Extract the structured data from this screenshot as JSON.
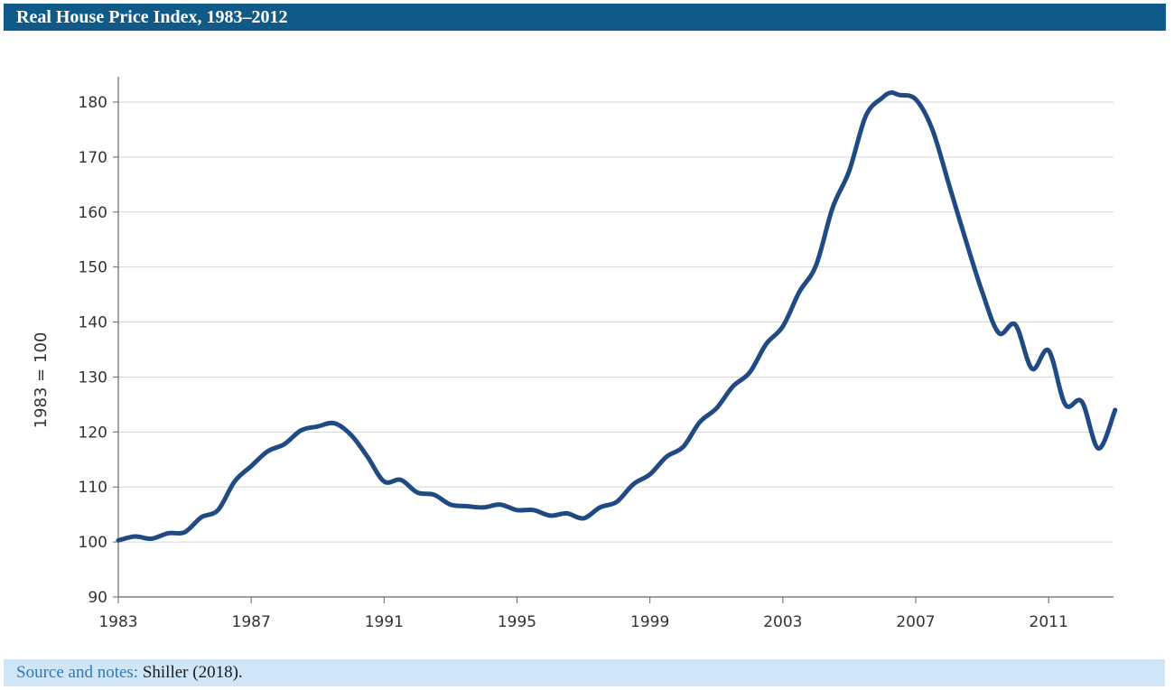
{
  "header": {
    "title": "Real House Price Index, 1983–2012"
  },
  "footer": {
    "label": "Source and notes:",
    "text": "Shiller (2018)."
  },
  "colors": {
    "title_bg": "#0f5a88",
    "line": "#1f4a82",
    "footer_bg": "#cfe6f8"
  },
  "chart_data": {
    "type": "line",
    "title": "Real House Price Index, 1983–2012",
    "ylabel": "1983 = 100",
    "xlabel": "",
    "xlim": [
      1983,
      2013.5
    ],
    "ylim": [
      90,
      185
    ],
    "xticks": [
      1983,
      1987,
      1991,
      1995,
      1999,
      2003,
      2007,
      2011
    ],
    "yticks": [
      90,
      100,
      110,
      120,
      130,
      140,
      150,
      160,
      170,
      180
    ],
    "grid": "horizontal",
    "series": [
      {
        "x": [
          1983.0,
          1983.5,
          1984.0,
          1984.5,
          1985.0,
          1985.5,
          1986.0,
          1986.5,
          1987.0,
          1987.5,
          1988.0,
          1988.5,
          1989.0,
          1989.5,
          1990.0,
          1990.5,
          1991.0,
          1991.5,
          1992.0,
          1992.5,
          1993.0,
          1993.5,
          1994.0,
          1994.5,
          1995.0,
          1995.5,
          1996.0,
          1996.5,
          1997.0,
          1997.5,
          1998.0,
          1998.5,
          1999.0,
          1999.5,
          2000.0,
          2000.5,
          2001.0,
          2001.5,
          2002.0,
          2002.5,
          2003.0,
          2003.5,
          2004.0,
          2004.5,
          2005.0,
          2005.5,
          2006.0,
          2006.25,
          2006.5,
          2007.0,
          2007.5,
          2008.0,
          2008.5,
          2009.0,
          2009.5,
          2010.0,
          2010.5,
          2011.0,
          2011.5,
          2012.0,
          2012.5,
          2013.0
        ],
        "y": [
          100.3,
          101.0,
          100.6,
          101.6,
          101.8,
          104.5,
          105.8,
          111.0,
          113.8,
          116.5,
          117.8,
          120.3,
          121.0,
          121.6,
          119.5,
          115.5,
          111.0,
          111.3,
          109.0,
          108.6,
          106.8,
          106.5,
          106.3,
          106.8,
          105.8,
          105.8,
          104.8,
          105.2,
          104.3,
          106.3,
          107.3,
          110.5,
          112.3,
          115.5,
          117.3,
          121.8,
          124.3,
          128.3,
          130.8,
          136.0,
          139.2,
          145.5,
          150.3,
          160.8,
          167.5,
          177.5,
          180.8,
          181.7,
          181.3,
          180.5,
          175.0,
          165.0,
          155.0,
          145.5,
          138.0,
          139.5,
          131.5,
          134.8,
          125.0,
          125.5,
          117.0,
          124.0
        ]
      }
    ]
  }
}
